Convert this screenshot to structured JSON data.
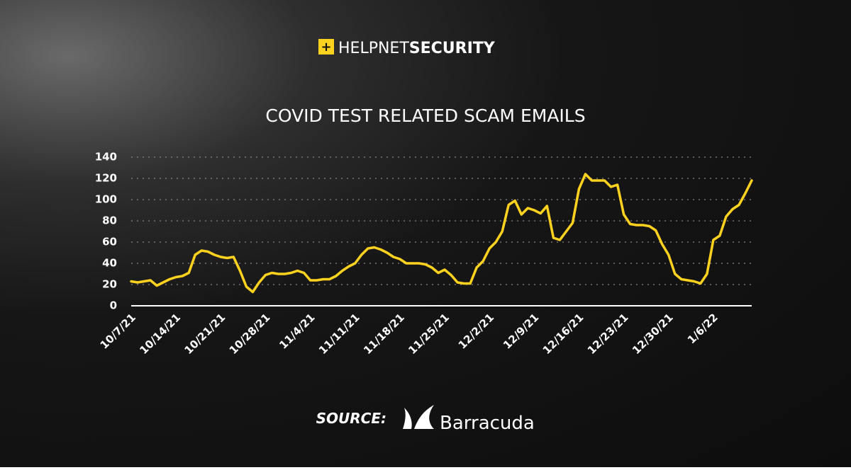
{
  "brand": {
    "help": "HELP",
    "net": "NET",
    "security": "SECURITY"
  },
  "source": {
    "label": "SOURCE:",
    "name": "Barracuda"
  },
  "chart_data": {
    "type": "line",
    "title": "COVID TEST RELATED SCAM EMAILS",
    "categories": [
      "10/7/21",
      null,
      null,
      null,
      null,
      null,
      null,
      "10/14/21",
      null,
      null,
      null,
      null,
      null,
      null,
      "10/21/21",
      null,
      null,
      null,
      null,
      null,
      null,
      "10/28/21",
      null,
      null,
      null,
      null,
      null,
      null,
      "11/4/21",
      null,
      null,
      null,
      null,
      null,
      null,
      "11/11/21",
      null,
      null,
      null,
      null,
      null,
      null,
      "11/18/21",
      null,
      null,
      null,
      null,
      null,
      null,
      "11/25/21",
      null,
      null,
      null,
      null,
      null,
      null,
      "12/2/21",
      null,
      null,
      null,
      null,
      null,
      null,
      "12/9/21",
      null,
      null,
      null,
      null,
      null,
      null,
      "12/16/21",
      null,
      null,
      null,
      null,
      null,
      null,
      "12/23/21",
      null,
      null,
      null,
      null,
      null,
      null,
      "12/30/21",
      null,
      null,
      null,
      null,
      null,
      null,
      "1/6/22",
      null,
      null,
      null,
      null,
      null,
      null
    ],
    "values": [
      23,
      22,
      23,
      24,
      19,
      22,
      25,
      27,
      28,
      31,
      48,
      52,
      51,
      48,
      46,
      45,
      46,
      33,
      18,
      13,
      22,
      29,
      31,
      30,
      30,
      31,
      33,
      31,
      24,
      24,
      25,
      25,
      28,
      33,
      37,
      40,
      48,
      54,
      55,
      53,
      50,
      46,
      44,
      40,
      40,
      40,
      39,
      36,
      31,
      34,
      29,
      22,
      21,
      21,
      36,
      42,
      54,
      60,
      70,
      95,
      99,
      86,
      92,
      90,
      87,
      94,
      64,
      62,
      70,
      78,
      110,
      124,
      118,
      118,
      118,
      112,
      114,
      86,
      77,
      76,
      76,
      75,
      71,
      58,
      48,
      30,
      25,
      24,
      23,
      21,
      30,
      62,
      66,
      84,
      91,
      95,
      106,
      118
    ],
    "color": "#ffd21f",
    "ylim": [
      0,
      140
    ],
    "yticks": [
      0,
      20,
      40,
      60,
      80,
      100,
      120,
      140
    ],
    "grid": true
  }
}
